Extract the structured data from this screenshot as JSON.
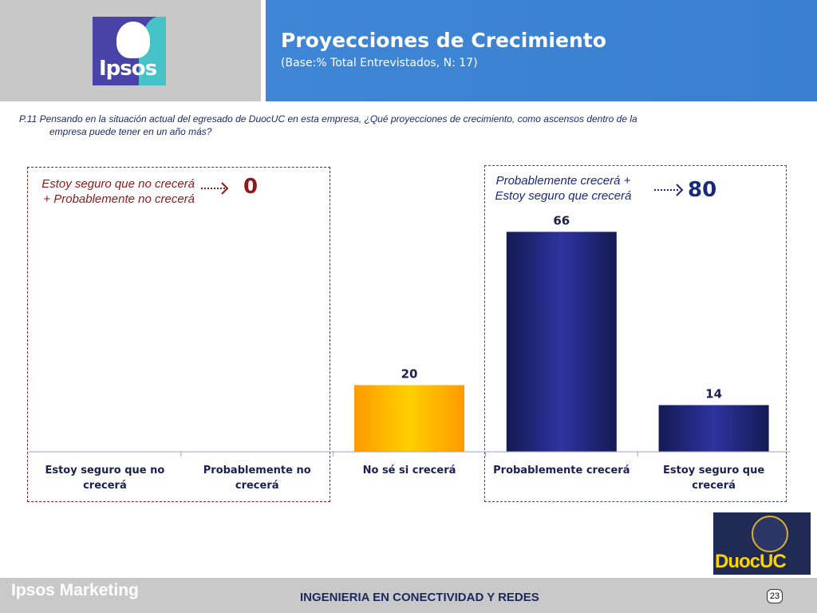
{
  "header": {
    "title": "Proyecciones de Crecimiento",
    "subtitle": "(Base:% Total Entrevistados, N: 17)",
    "logo_text": "Ipsos"
  },
  "question": {
    "line1": "P.11 Pensando en la situación actual del egresado de DuocUC en  esta empresa, ¿Qué  proyecciones de crecimiento, como ascensos dentro de la",
    "line2": "empresa  puede tener en un año más?"
  },
  "groups": {
    "negative": {
      "label": "Estoy seguro que no crecerá + Probablemente no crecerá",
      "total": "0",
      "color": "#8b1a1a"
    },
    "positive": {
      "label": "Probablemente crecerá + Estoy seguro que crecerá",
      "total": "80",
      "color": "#1a2a7a"
    }
  },
  "chart_data": {
    "type": "bar",
    "title": "Proyecciones de Crecimiento",
    "categories": [
      "Estoy seguro que no crecerá",
      "Probablemente no crecerá",
      "No sé si crecerá",
      "Probablemente crecerá",
      "Estoy seguro que crecerá"
    ],
    "values": [
      0,
      0,
      20,
      66,
      14
    ],
    "data_labels": [
      "",
      "",
      "20",
      "66",
      "14"
    ],
    "bar_colors": [
      "#1e2470",
      "#1e2470",
      "#ffb000",
      "#1e2470",
      "#1e2470"
    ],
    "ylim": [
      0,
      80
    ],
    "grid": false,
    "legend": "none",
    "xlabel": "",
    "ylabel": ""
  },
  "footer": {
    "brand": "Ipsos Marketing",
    "center": "INGENIERIA EN CONECTIVIDAD Y REDES",
    "page": "23",
    "duoc_logo_text": "DuocUC"
  }
}
